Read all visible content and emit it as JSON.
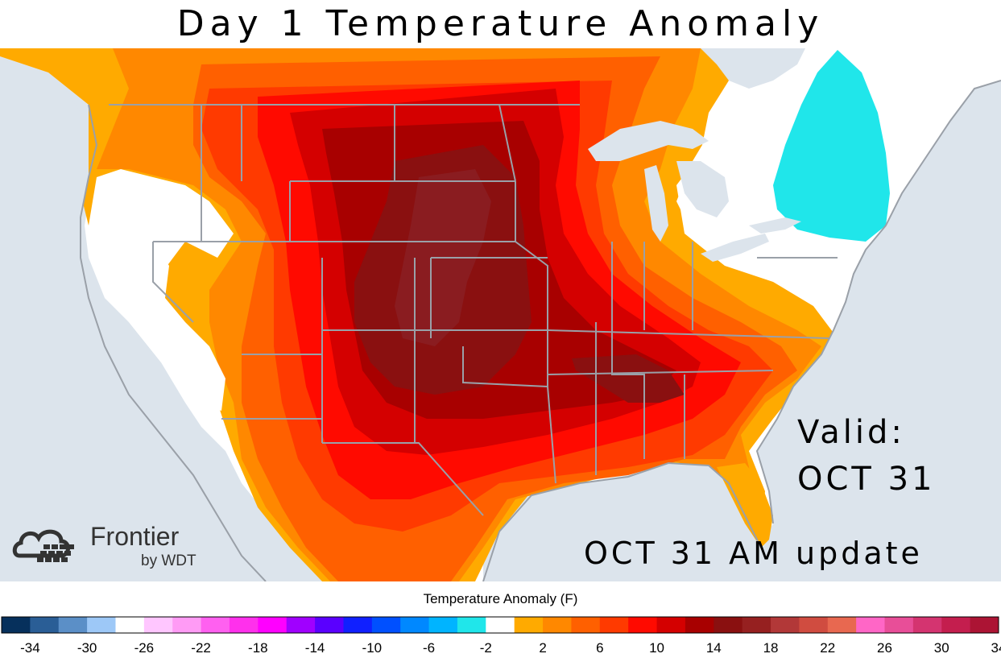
{
  "title": "Day 1 Temperature Anomaly",
  "valid_label": "Valid:",
  "valid_date": "OCT 31",
  "update_label": "OCT 31 AM update",
  "logo": {
    "name": "Frontier",
    "sub": "by WDT"
  },
  "legend": {
    "title": "Temperature Anomaly (F)",
    "colors": [
      "#06305c",
      "#2a5e96",
      "#5b8fc7",
      "#9dc8f7",
      "#ffffff",
      "#ffc6ff",
      "#ff9bf5",
      "#ff60f0",
      "#ff30ec",
      "#ff00ff",
      "#a000ff",
      "#5a00ff",
      "#1020ff",
      "#0050ff",
      "#0088ff",
      "#00b4ff",
      "#20e6ea",
      "#ffffff",
      "#ffaa00",
      "#ff8800",
      "#ff6000",
      "#ff3a00",
      "#ff0a00",
      "#d40000",
      "#a80000",
      "#8a1010",
      "#962020",
      "#b23838",
      "#d04c40",
      "#e86850",
      "#ff66c6",
      "#e84e98",
      "#d43470",
      "#c41e4e",
      "#ac1434"
    ],
    "tick_labels": [
      "-34",
      "-30",
      "-26",
      "-22",
      "-18",
      "-14",
      "-10",
      "-6",
      "-2",
      "2",
      "6",
      "10",
      "14",
      "18",
      "22",
      "26",
      "30",
      "34"
    ]
  },
  "colors": {
    "ocean": "#dce4ec",
    "land": "#ffffff",
    "lakes": "#dce4ec",
    "borders": "#9aa0a8",
    "cool_anomaly": "#20e6ea",
    "text": "#000000"
  }
}
